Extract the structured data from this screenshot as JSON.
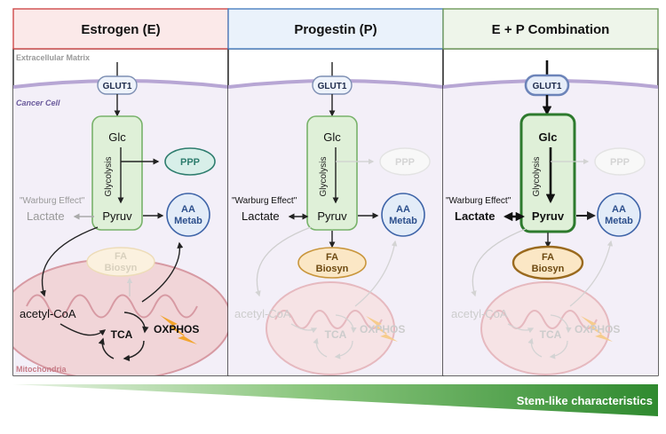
{
  "panels": [
    {
      "key": "estrogen",
      "title": "Estrogen (E)",
      "header_fill": "#fbe9e9",
      "header_stroke": "#cf4b4b",
      "extracellular_label": "Extracellular Matrix",
      "cell_label": "Cancer Cell",
      "mitochondria_label": "Mitochondria",
      "nodes": {
        "glut1": "GLUT1",
        "glc": "Glc",
        "glycolysis": "Glycolysis",
        "pyruv": "Pyruv",
        "ppp": "PPP",
        "aa_line1": "AA",
        "aa_line2": "Metab",
        "fa_line1": "FA",
        "fa_line2": "Biosyn",
        "warburg": "\"Warburg Effect\"",
        "lactate": "Lactate",
        "acetyl_coa": "acetyl-CoA",
        "tca": "TCA",
        "oxphos": "OXPHOS"
      }
    },
    {
      "key": "progestin",
      "title": "Progestin (P)",
      "header_fill": "#eaf2fb",
      "header_stroke": "#4a7fc0",
      "nodes": {
        "glut1": "GLUT1",
        "glc": "Glc",
        "glycolysis": "Glycolysis",
        "pyruv": "Pyruv",
        "ppp": "PPP",
        "aa_line1": "AA",
        "aa_line2": "Metab",
        "fa_line1": "FA",
        "fa_line2": "Biosyn",
        "warburg": "\"Warburg Effect\"",
        "lactate": "Lactate",
        "acetyl_coa": "acetyl-CoA",
        "tca": "TCA",
        "oxphos": "OXPHOS"
      }
    },
    {
      "key": "combination",
      "title": "E + P Combination",
      "header_fill": "#eef5ea",
      "header_stroke": "#6f9a5c",
      "nodes": {
        "glut1": "GLUT1",
        "glc": "Glc",
        "glycolysis": "Glycolysis",
        "pyruv": "Pyruv",
        "ppp": "PPP",
        "aa_line1": "AA",
        "aa_line2": "Metab",
        "fa_line1": "FA",
        "fa_line2": "Biosyn",
        "warburg": "\"Warburg Effect\"",
        "lactate": "Lactate",
        "acetyl_coa": "acetyl-CoA",
        "tca": "TCA",
        "oxphos": "OXPHOS"
      }
    }
  ],
  "gradient_bar": {
    "label": "Stem-like characteristics",
    "color": "#3f9a3a"
  }
}
